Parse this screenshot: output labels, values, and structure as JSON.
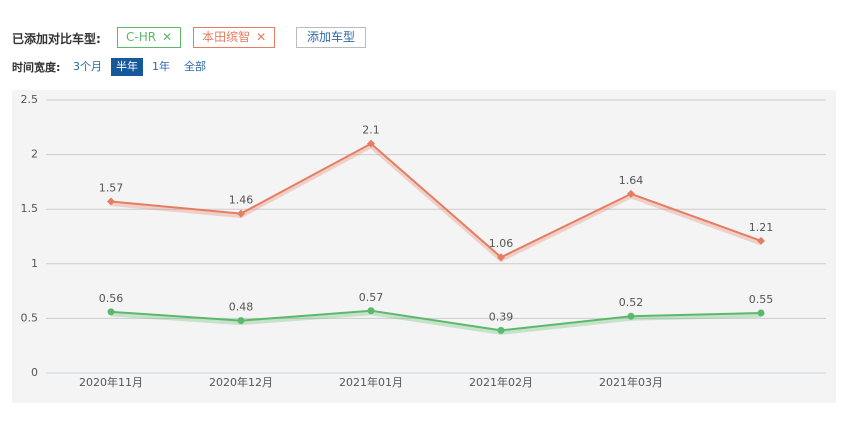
{
  "header": {
    "label": "已添加对比车型:",
    "add_button": "添加车型"
  },
  "time_range": {
    "label": "时间宽度:",
    "options": [
      "3个月",
      "半年",
      "1年",
      "全部"
    ],
    "selected": 1
  },
  "chart_data": {
    "type": "line",
    "categories": [
      "2020年11月",
      "2020年12月",
      "2021年01月",
      "2021年02月",
      "2021年03月",
      null
    ],
    "series": [
      {
        "name": "C-HR",
        "color": "#5cb96c",
        "marker": "circle",
        "values": [
          0.56,
          0.48,
          0.57,
          0.39,
          0.52,
          0.55
        ]
      },
      {
        "name": "本田缤智",
        "color": "#e57d62",
        "marker": "diamond",
        "values": [
          1.57,
          1.46,
          2.1,
          1.06,
          1.64,
          1.21
        ]
      }
    ],
    "ylim": [
      0,
      2.5
    ],
    "yticks": [
      0,
      0.5,
      1,
      1.5,
      2,
      2.5
    ],
    "grid": true
  }
}
